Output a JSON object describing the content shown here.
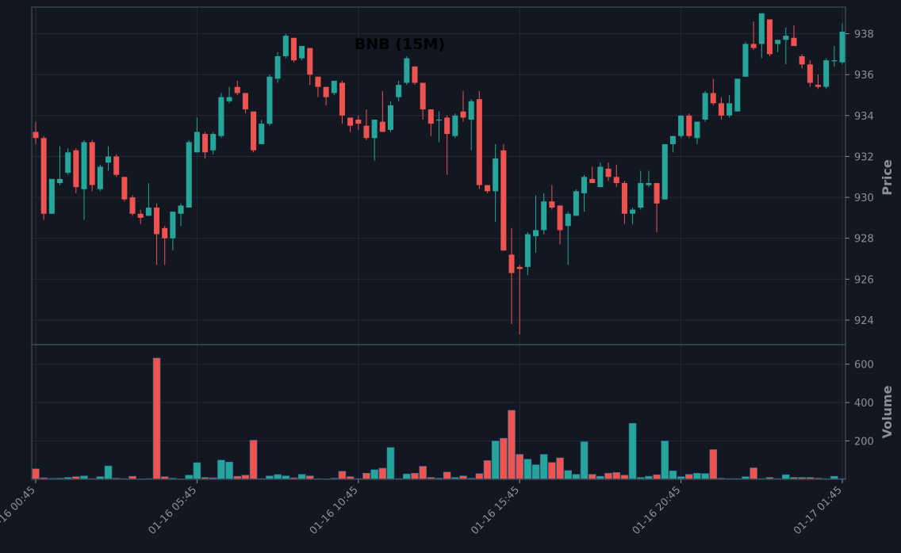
{
  "colors": {
    "background": "#131722",
    "panel_border": "#3d4250",
    "grid": "#242837",
    "up": "#26a69a",
    "down": "#ef5350",
    "axis_text": "#8a8f9c",
    "title": "#000000"
  },
  "chart_data": {
    "type": "candlestick",
    "title": "BNB (15M)",
    "ylabel_price": "Price",
    "ylabel_volume": "Volume",
    "price_ylim": [
      922.8,
      939.3
    ],
    "volume_ylim": [
      0,
      640
    ],
    "price_ticks": [
      924,
      926,
      928,
      930,
      932,
      934,
      936,
      938
    ],
    "volume_ticks": [
      200,
      400,
      600
    ],
    "x_tick_labels": [
      {
        "index": 0,
        "label": "01-16 00:45"
      },
      {
        "index": 20,
        "label": "01-16 05:45"
      },
      {
        "index": 40,
        "label": "01-16 10:45"
      },
      {
        "index": 60,
        "label": "01-16 15:45"
      },
      {
        "index": 80,
        "label": "01-16 20:45"
      },
      {
        "index": 100,
        "label": "01-17 01:45"
      }
    ],
    "grid": true,
    "candles": [
      [
        933.2,
        933.7,
        932.6,
        932.9,
        55
      ],
      [
        932.9,
        933.0,
        928.9,
        929.2,
        8
      ],
      [
        929.2,
        930.9,
        929.2,
        930.9,
        5
      ],
      [
        930.7,
        932.5,
        930.6,
        930.9,
        6
      ],
      [
        931.2,
        932.4,
        931.1,
        932.2,
        10
      ],
      [
        932.3,
        932.4,
        930.2,
        930.5,
        14
      ],
      [
        930.4,
        932.8,
        928.9,
        932.7,
        18
      ],
      [
        932.7,
        932.8,
        930.3,
        930.6,
        4
      ],
      [
        930.4,
        931.6,
        930.3,
        931.5,
        14
      ],
      [
        931.7,
        932.5,
        931.3,
        932.0,
        70
      ],
      [
        932.0,
        932.1,
        931.0,
        931.1,
        6
      ],
      [
        931.0,
        931.0,
        929.8,
        929.9,
        4
      ],
      [
        930.0,
        930.1,
        929.1,
        929.2,
        16
      ],
      [
        929.2,
        929.4,
        928.7,
        929.0,
        3
      ],
      [
        929.1,
        930.7,
        929.1,
        929.5,
        4
      ],
      [
        929.5,
        929.7,
        926.7,
        928.2,
        632
      ],
      [
        928.5,
        928.6,
        926.7,
        928.0,
        14
      ],
      [
        928.0,
        929.3,
        927.4,
        929.3,
        6
      ],
      [
        929.2,
        929.7,
        928.6,
        929.6,
        3
      ],
      [
        929.5,
        932.8,
        929.5,
        932.7,
        22
      ],
      [
        932.2,
        933.9,
        932.2,
        933.2,
        87
      ],
      [
        933.1,
        933.2,
        931.9,
        932.2,
        10
      ],
      [
        932.3,
        933.2,
        932.1,
        933.1,
        8
      ],
      [
        933.0,
        935.1,
        932.9,
        934.9,
        100
      ],
      [
        934.7,
        935.4,
        934.6,
        934.9,
        90
      ],
      [
        935.4,
        935.7,
        935.0,
        935.1,
        16
      ],
      [
        935.1,
        935.1,
        934.1,
        934.3,
        22
      ],
      [
        934.2,
        934.2,
        932.2,
        932.3,
        204
      ],
      [
        932.6,
        933.8,
        932.6,
        933.6,
        4
      ],
      [
        933.6,
        936.0,
        933.5,
        935.9,
        18
      ],
      [
        935.8,
        937.1,
        935.6,
        936.9,
        25
      ],
      [
        936.9,
        938.0,
        936.8,
        937.9,
        18
      ],
      [
        937.8,
        937.8,
        936.6,
        936.7,
        8
      ],
      [
        936.8,
        937.4,
        936.7,
        937.4,
        26
      ],
      [
        937.3,
        937.3,
        935.5,
        936.0,
        18
      ],
      [
        935.9,
        935.9,
        934.9,
        935.4,
        4
      ],
      [
        935.4,
        935.4,
        934.5,
        934.9,
        3
      ],
      [
        935.1,
        935.7,
        935.0,
        935.7,
        6
      ],
      [
        935.6,
        935.7,
        933.6,
        934.0,
        42
      ],
      [
        933.9,
        933.9,
        933.2,
        933.5,
        14
      ],
      [
        933.8,
        934.0,
        933.3,
        933.6,
        4
      ],
      [
        933.5,
        934.3,
        932.8,
        932.9,
        32
      ],
      [
        932.9,
        933.8,
        931.8,
        933.8,
        50
      ],
      [
        933.7,
        935.2,
        933.2,
        933.2,
        58
      ],
      [
        933.3,
        934.7,
        933.2,
        934.5,
        166
      ],
      [
        934.9,
        935.7,
        934.7,
        935.5,
        4
      ],
      [
        935.6,
        936.9,
        935.5,
        936.8,
        28
      ],
      [
        936.4,
        936.4,
        935.5,
        935.6,
        32
      ],
      [
        935.6,
        935.6,
        933.8,
        934.3,
        68
      ],
      [
        934.3,
        934.3,
        933.0,
        933.6,
        10
      ],
      [
        933.8,
        934.2,
        932.7,
        933.8,
        6
      ],
      [
        933.9,
        934.0,
        931.1,
        933.1,
        38
      ],
      [
        933.0,
        934.1,
        932.9,
        934.0,
        10
      ],
      [
        934.2,
        935.2,
        933.7,
        933.9,
        18
      ],
      [
        933.8,
        934.8,
        932.3,
        934.7,
        6
      ],
      [
        934.8,
        935.2,
        930.4,
        930.6,
        30
      ],
      [
        930.6,
        930.6,
        930.2,
        930.3,
        98
      ],
      [
        930.3,
        932.6,
        928.8,
        931.9,
        200
      ],
      [
        932.3,
        932.6,
        927.4,
        927.4,
        214
      ],
      [
        927.2,
        928.5,
        923.8,
        926.3,
        360
      ],
      [
        926.6,
        926.7,
        923.3,
        926.5,
        130
      ],
      [
        926.6,
        928.3,
        926.2,
        928.2,
        105
      ],
      [
        928.1,
        930.1,
        927.3,
        928.4,
        76
      ],
      [
        928.4,
        930.2,
        928.2,
        929.8,
        130
      ],
      [
        929.8,
        930.6,
        929.4,
        929.5,
        88
      ],
      [
        929.6,
        929.6,
        927.7,
        928.4,
        112
      ],
      [
        928.6,
        929.3,
        926.7,
        929.2,
        46
      ],
      [
        929.1,
        930.4,
        929.1,
        930.3,
        26
      ],
      [
        930.2,
        931.1,
        929.3,
        931.0,
        196
      ],
      [
        930.9,
        931.5,
        930.7,
        930.7,
        26
      ],
      [
        930.5,
        931.7,
        930.5,
        931.5,
        16
      ],
      [
        931.4,
        931.7,
        930.8,
        931.0,
        32
      ],
      [
        931.0,
        931.6,
        930.5,
        930.7,
        36
      ],
      [
        930.7,
        930.8,
        928.7,
        929.2,
        22
      ],
      [
        929.2,
        929.5,
        928.7,
        929.4,
        292
      ],
      [
        929.5,
        931.3,
        929.4,
        930.7,
        10
      ],
      [
        930.6,
        931.3,
        930.5,
        930.7,
        16
      ],
      [
        930.7,
        930.7,
        928.3,
        929.7,
        24
      ],
      [
        929.9,
        932.6,
        929.9,
        932.6,
        200
      ],
      [
        932.6,
        933.0,
        932.2,
        933.0,
        44
      ],
      [
        933.0,
        934.0,
        932.9,
        934.0,
        14
      ],
      [
        934.0,
        934.1,
        932.9,
        933.0,
        26
      ],
      [
        932.9,
        933.7,
        932.6,
        933.7,
        32
      ],
      [
        933.8,
        935.2,
        933.7,
        935.1,
        30
      ],
      [
        935.1,
        935.8,
        934.5,
        934.6,
        155
      ],
      [
        934.6,
        934.9,
        933.8,
        934.0,
        6
      ],
      [
        934.0,
        935.0,
        933.9,
        934.6,
        4
      ],
      [
        934.2,
        935.8,
        934.2,
        935.8,
        4
      ],
      [
        935.9,
        937.6,
        935.9,
        937.5,
        14
      ],
      [
        937.5,
        938.6,
        937.2,
        937.3,
        60
      ],
      [
        937.5,
        939.0,
        936.8,
        939.0,
        4
      ],
      [
        938.7,
        938.7,
        936.9,
        937.0,
        10
      ],
      [
        937.5,
        937.7,
        937.1,
        937.7,
        4
      ],
      [
        937.7,
        938.3,
        936.5,
        937.9,
        24
      ],
      [
        937.8,
        938.4,
        937.4,
        937.4,
        10
      ],
      [
        936.9,
        937.0,
        936.3,
        936.5,
        10
      ],
      [
        936.5,
        936.7,
        935.4,
        935.6,
        10
      ],
      [
        935.5,
        936.0,
        935.3,
        935.4,
        6
      ],
      [
        935.4,
        936.8,
        935.3,
        936.7,
        4
      ],
      [
        936.7,
        937.4,
        936.4,
        936.7,
        16
      ],
      [
        936.6,
        938.5,
        936.5,
        938.1,
        4
      ]
    ]
  }
}
